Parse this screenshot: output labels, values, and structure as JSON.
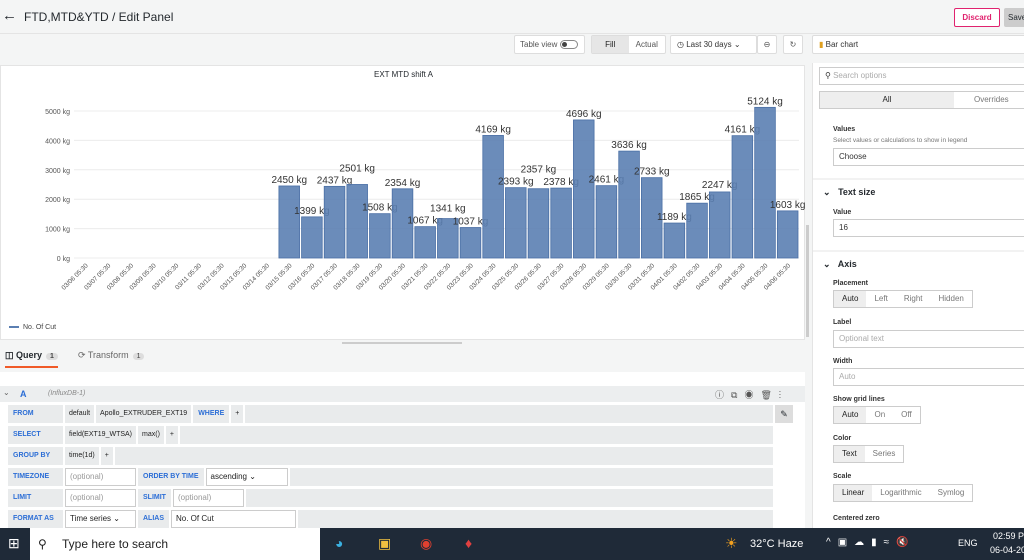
{
  "header": {
    "title": "FTD,MTD&YTD / Edit Panel",
    "discard": "Discard",
    "save": "Save"
  },
  "toolbar": {
    "table_view": "Table view",
    "fill": "Fill",
    "actual": "Actual",
    "time_range": "Last 30 days",
    "viz": "Bar chart"
  },
  "panel": {
    "title": "EXT MTD shift A",
    "legend": "No. Of Cut"
  },
  "chart_data": {
    "type": "bar",
    "title": "EXT MTD shift A",
    "ylim": [
      0,
      5000
    ],
    "yticks": [
      "0 kg",
      "1000 kg",
      "2000 kg",
      "3000 kg",
      "4000 kg",
      "5000 kg"
    ],
    "unit": "kg",
    "grid": true,
    "legend": "bottom-left",
    "series": [
      {
        "name": "No. Of Cut",
        "color": "#5b7fb2"
      }
    ],
    "categories": [
      "03/06 05:30",
      "03/07 05:30",
      "03/08 05:30",
      "03/09 05:30",
      "03/10 05:30",
      "03/11 05:30",
      "03/12 05:30",
      "03/13 05:30",
      "03/14 05:30",
      "03/15 05:30",
      "03/16 05:30",
      "03/17 05:30",
      "03/18 05:30",
      "03/19 05:30",
      "03/20 05:30",
      "03/21 05:30",
      "03/22 05:30",
      "03/23 05:30",
      "03/24 05:30",
      "03/25 05:30",
      "03/26 05:30",
      "03/27 05:30",
      "03/28 05:30",
      "03/29 05:30",
      "03/30 05:30",
      "03/31 05:30",
      "04/01 05:30",
      "04/02 05:30",
      "04/03 05:30",
      "04/04 05:30",
      "04/05 05:30",
      "04/06 05:30"
    ],
    "values": [
      null,
      null,
      null,
      null,
      null,
      null,
      null,
      null,
      null,
      2450,
      1399,
      2437,
      2501,
      1508,
      2354,
      1067,
      1341,
      1037,
      4169,
      2393,
      2357,
      2378,
      4696,
      2461,
      3636,
      2733,
      1189,
      1865,
      2247,
      4161,
      5124,
      1603
    ]
  },
  "query": {
    "tab_query": "Query",
    "tab_query_count": "1",
    "tab_transform": "Transform",
    "tab_transform_count": "1",
    "ref": "A",
    "datasource": "(InfluxDB-1)",
    "from": "FROM",
    "from_policy": "default",
    "from_measurement": "Apollo_EXTRUDER_EXT19",
    "where": "WHERE",
    "plus": "+",
    "select": "SELECT",
    "select_field": "field(EXT19_WTSA)",
    "select_fn": "max()",
    "group_by": "GROUP BY",
    "group_time": "time(1d)",
    "timezone": "TIMEZONE",
    "optional": "(optional)",
    "order_by": "ORDER BY TIME",
    "order_value": "ascending",
    "limit": "LIMIT",
    "slimit": "SLIMIT",
    "format_as": "FORMAT AS",
    "format_value": "Time series",
    "alias": "ALIAS",
    "alias_value": "No. Of Cut"
  },
  "options": {
    "search_placeholder": "Search options",
    "tab_all": "All",
    "tab_overrides": "Overrides",
    "values_label": "Values",
    "values_desc": "Select values or calculations to show in legend",
    "values_choose": "Choose",
    "text_size": "Text size",
    "value_label": "Value",
    "value": "16",
    "axis": "Axis",
    "placement": "Placement",
    "placement_opts": [
      "Auto",
      "Left",
      "Right",
      "Hidden"
    ],
    "label": "Label",
    "label_placeholder": "Optional text",
    "width": "Width",
    "width_placeholder": "Auto",
    "grid_lines": "Show grid lines",
    "grid_opts": [
      "Auto",
      "On",
      "Off"
    ],
    "color": "Color",
    "color_opts": [
      "Text",
      "Series"
    ],
    "scale": "Scale",
    "scale_opts": [
      "Linear",
      "Logarithmic",
      "Symlog"
    ],
    "centered_zero": "Centered zero"
  },
  "taskbar": {
    "search": "Type here to search",
    "weather": "32°C  Haze",
    "lang": "ENG",
    "time": "02:59 PM",
    "date": "06-04-2023"
  }
}
